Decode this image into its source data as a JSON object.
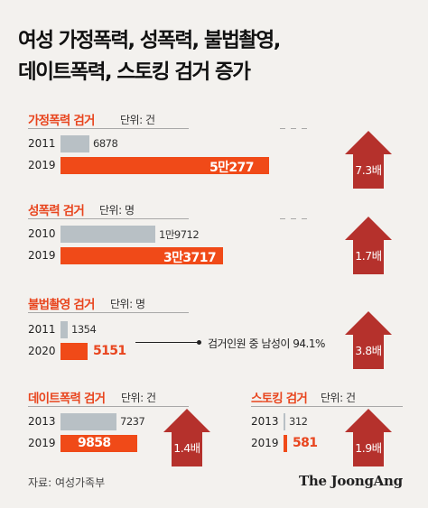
{
  "title": {
    "line1": "여성 가정폭력, 성폭력, 불법촬영,",
    "line2": "데이트폭력, 스토킹 검거 증가"
  },
  "colors": {
    "accent": "#e8451e",
    "bar_new": "#f04a18",
    "bar_old": "#b8c0c5",
    "arrow": "#b5312c",
    "background": "#f3f1ee"
  },
  "callout": "검거인원 중 남성이 94.1%",
  "source": "자료: 여성가족부",
  "brand": "The JoongAng",
  "chart_data": [
    {
      "type": "bar",
      "title": "가정폭력 검거",
      "unit": "단위: 건",
      "categories": [
        "2011",
        "2019"
      ],
      "values": [
        6878,
        50277
      ],
      "value_labels": [
        "6878",
        "5만277"
      ],
      "increase_label": "7.3배"
    },
    {
      "type": "bar",
      "title": "성폭력 검거",
      "unit": "단위: 명",
      "categories": [
        "2010",
        "2019"
      ],
      "values": [
        19712,
        33717
      ],
      "value_labels": [
        "1만9712",
        "3만3717"
      ],
      "increase_label": "1.7배"
    },
    {
      "type": "bar",
      "title": "불법촬영 검거",
      "unit": "단위: 명",
      "categories": [
        "2011",
        "2020"
      ],
      "values": [
        1354,
        5151
      ],
      "value_labels": [
        "1354",
        "5151"
      ],
      "increase_label": "3.8배"
    },
    {
      "type": "bar",
      "title": "데이트폭력 검거",
      "unit": "단위: 건",
      "categories": [
        "2013",
        "2019"
      ],
      "values": [
        7237,
        9858
      ],
      "value_labels": [
        "7237",
        "9858"
      ],
      "increase_label": "1.4배"
    },
    {
      "type": "bar",
      "title": "스토킹 검거",
      "unit": "단위: 건",
      "categories": [
        "2013",
        "2019"
      ],
      "values": [
        312,
        581
      ],
      "value_labels": [
        "312",
        "581"
      ],
      "increase_label": "1.9배"
    }
  ]
}
